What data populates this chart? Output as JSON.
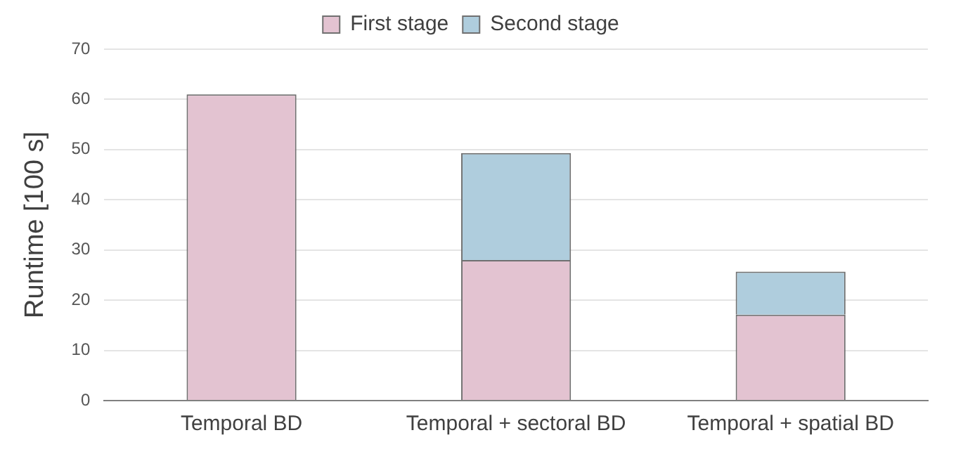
{
  "chart_data": {
    "type": "bar",
    "stacked": true,
    "ylabel": "Runtime [100 s]",
    "categories": [
      "Temporal BD",
      "Temporal + sectoral BD",
      "Temporal + spatial BD"
    ],
    "series": [
      {
        "name": "First stage",
        "color": "#e3c3d1",
        "values": [
          61,
          28,
          17.1
        ]
      },
      {
        "name": "Second stage",
        "color": "#afcddd",
        "values": [
          null,
          21.3,
          8.6
        ]
      }
    ],
    "ylim": [
      0,
      70
    ],
    "yticks": [
      0,
      10,
      20,
      30,
      40,
      50,
      60,
      70
    ],
    "grid": "y",
    "legend": "top"
  }
}
